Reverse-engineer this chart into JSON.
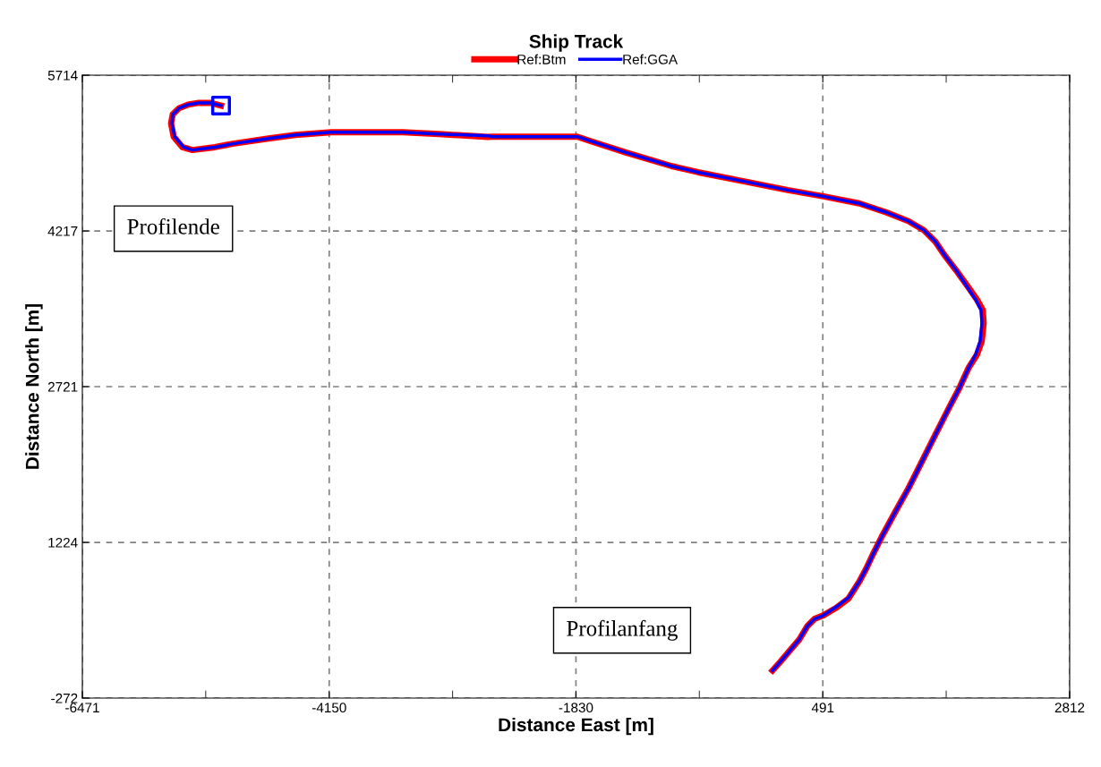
{
  "chart_data": {
    "type": "line",
    "title": "Ship Track",
    "xlabel": "Distance East [m]",
    "ylabel": "Distance North [m]",
    "xlim": [
      -6471,
      2812
    ],
    "ylim": [
      -272,
      5714
    ],
    "xticks": [
      -6471,
      {
        "value": -5311,
        "label": null
      },
      -4150,
      {
        "value": -2990,
        "label": null
      },
      -1830,
      {
        "value": -670,
        "label": null
      },
      491,
      {
        "value": 1651,
        "label": null
      },
      2812
    ],
    "yticks": [
      -272,
      1224,
      2721,
      4217,
      5714
    ],
    "grid": true,
    "legend": "top",
    "line_style": "solid",
    "marker": "none",
    "annotations": [
      "Profilende",
      "Profilanfang"
    ],
    "series": [
      {
        "name": "Ref:Btm",
        "color": "#ff0000",
        "x": [
          18,
          93,
          178,
          270,
          346,
          413,
          497,
          624,
          733,
          834,
          901,
          960,
          1044,
          1171,
          1297,
          1423,
          1549,
          1676,
          1777,
          1861,
          1940,
          1985,
          2003,
          1995,
          1940,
          1852,
          1743,
          1634,
          1549,
          1440,
          1297,
          1087,
          834,
          497,
          161,
          -260,
          -681,
          -933,
          -1354,
          -1691,
          -1817,
          -2617,
          -2659,
          -3121,
          -3458,
          -4131,
          -4468,
          -4721,
          -5057,
          -5225,
          -5436,
          -5530,
          -5612,
          -5637,
          -5621,
          -5562,
          -5478,
          -5377,
          -5268,
          -5167
        ],
        "values": [
          -7,
          79,
          181,
          292,
          421,
          489,
          523,
          600,
          685,
          848,
          976,
          1105,
          1276,
          1515,
          1746,
          2002,
          2259,
          2515,
          2712,
          2900,
          3028,
          3157,
          3328,
          3456,
          3558,
          3687,
          3841,
          3986,
          4114,
          4225,
          4311,
          4396,
          4482,
          4550,
          4610,
          4696,
          4781,
          4841,
          4969,
          5080,
          5123,
          5123,
          5120,
          5149,
          5166,
          5166,
          5140,
          5106,
          5055,
          5022,
          4995,
          5022,
          5123,
          5251,
          5337,
          5397,
          5431,
          5448,
          5448,
          5422
        ]
      },
      {
        "name": "Ref:GGA",
        "color": "#0000ff",
        "x": [
          18,
          93,
          178,
          270,
          346,
          413,
          497,
          624,
          733,
          834,
          901,
          960,
          1044,
          1171,
          1297,
          1423,
          1549,
          1676,
          1777,
          1861,
          1928,
          1970,
          1987,
          1979,
          1928,
          1844,
          1743,
          1634,
          1549,
          1440,
          1297,
          1087,
          834,
          497,
          161,
          -260,
          -681,
          -933,
          -1354,
          -1691,
          -1817,
          -2617,
          -2659,
          -3121,
          -3458,
          -4131,
          -4468,
          -4721,
          -5057,
          -5225,
          -5436,
          -5520,
          -5604,
          -5629,
          -5621,
          -5562,
          -5478,
          -5377,
          -5268,
          -5167
        ],
        "values": [
          -7,
          79,
          181,
          292,
          421,
          489,
          523,
          609,
          694,
          848,
          976,
          1105,
          1276,
          1515,
          1746,
          2002,
          2259,
          2515,
          2712,
          2900,
          3028,
          3157,
          3328,
          3456,
          3558,
          3687,
          3841,
          3986,
          4114,
          4225,
          4311,
          4396,
          4482,
          4550,
          4610,
          4696,
          4781,
          4841,
          4969,
          5080,
          5123,
          5123,
          5132,
          5149,
          5166,
          5166,
          5140,
          5106,
          5055,
          5022,
          4995,
          5022,
          5123,
          5251,
          5337,
          5397,
          5431,
          5448,
          5448,
          5422
        ]
      },
      {
        "type": "scatter",
        "marker": "square",
        "color": "#0000ff",
        "x": [
          -5167
        ],
        "values": [
          5422
        ]
      }
    ]
  }
}
